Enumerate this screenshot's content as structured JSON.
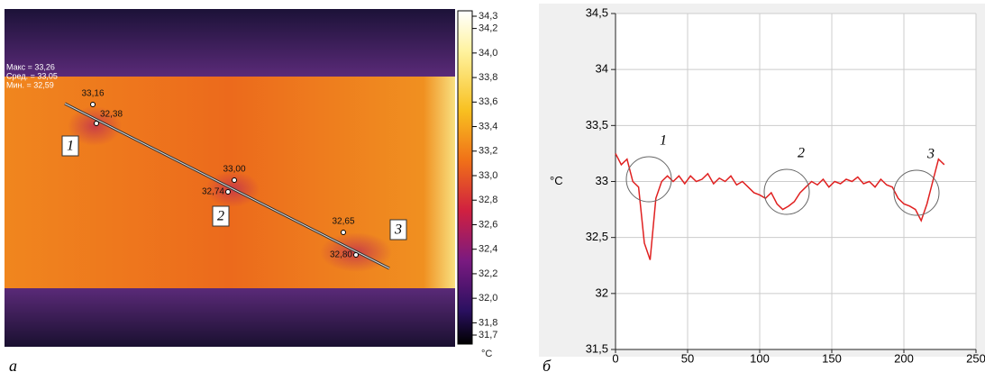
{
  "chart_data": [
    {
      "type": "thermal-image",
      "panel_label": "а",
      "stats": [
        "Макс = 33,26",
        "Сред. = 33,05",
        "Мин. = 32,59"
      ],
      "point_labels": [
        "33,16",
        "32,38",
        "33,00",
        "32,74",
        "32,65",
        "32,80"
      ],
      "markers": [
        "1",
        "2",
        "3"
      ],
      "colorbar_unit": "°C",
      "clim": [
        31.7,
        34.3
      ],
      "cticks": [
        {
          "value": 34.3,
          "label": "34,3"
        },
        {
          "value": 34.2,
          "label": "34,2"
        },
        {
          "value": 34.0,
          "label": "34,0"
        },
        {
          "value": 33.8,
          "label": "33,8"
        },
        {
          "value": 33.6,
          "label": "33,6"
        },
        {
          "value": 33.4,
          "label": "33,4"
        },
        {
          "value": 33.2,
          "label": "33,2"
        },
        {
          "value": 33.0,
          "label": "33,0"
        },
        {
          "value": 32.8,
          "label": "32,8"
        },
        {
          "value": 32.6,
          "label": "32,6"
        },
        {
          "value": 32.4,
          "label": "32,4"
        },
        {
          "value": 32.2,
          "label": "32,2"
        },
        {
          "value": 32.0,
          "label": "32,0"
        },
        {
          "value": 31.8,
          "label": "31,8"
        },
        {
          "value": 31.7,
          "label": "31,7"
        }
      ]
    },
    {
      "type": "line",
      "panel_label": "б",
      "ylabel": "°C",
      "x": [
        0,
        4,
        8,
        12,
        16,
        20,
        24,
        28,
        32,
        36,
        40,
        44,
        48,
        52,
        56,
        60,
        64,
        68,
        72,
        76,
        80,
        84,
        88,
        92,
        96,
        100,
        104,
        108,
        112,
        116,
        120,
        124,
        128,
        132,
        136,
        140,
        144,
        148,
        152,
        156,
        160,
        164,
        168,
        172,
        176,
        180,
        184,
        188,
        192,
        196,
        200,
        204,
        208,
        212,
        216,
        220,
        224,
        228
      ],
      "series": [
        {
          "color": "#e02020",
          "values": [
            33.25,
            33.15,
            33.2,
            33.0,
            32.95,
            32.45,
            32.3,
            32.85,
            33.0,
            33.05,
            33.0,
            33.05,
            32.98,
            33.05,
            33.0,
            33.02,
            33.07,
            32.98,
            33.03,
            33.0,
            33.05,
            32.97,
            33.0,
            32.95,
            32.9,
            32.88,
            32.85,
            32.9,
            32.8,
            32.75,
            32.78,
            32.82,
            32.9,
            32.95,
            33.0,
            32.97,
            33.02,
            32.95,
            33.0,
            32.98,
            33.02,
            33.0,
            33.04,
            32.98,
            33.0,
            32.95,
            33.02,
            32.97,
            32.95,
            32.85,
            32.8,
            32.78,
            32.75,
            32.65,
            32.8,
            33.0,
            33.2,
            33.15
          ]
        }
      ],
      "annotations": [
        "1",
        "2",
        "3"
      ],
      "xlim": [
        0,
        250
      ],
      "ylim": [
        31.5,
        34.5
      ],
      "xticks": [
        0,
        50,
        100,
        150,
        200,
        250
      ],
      "yticks": [
        {
          "value": 31.5,
          "label": "31,5"
        },
        32,
        {
          "value": 32.5,
          "label": "32,5"
        },
        33,
        {
          "value": 33.5,
          "label": "33,5"
        },
        34,
        {
          "value": 34.5,
          "label": "34,5"
        }
      ],
      "grid": true
    }
  ]
}
